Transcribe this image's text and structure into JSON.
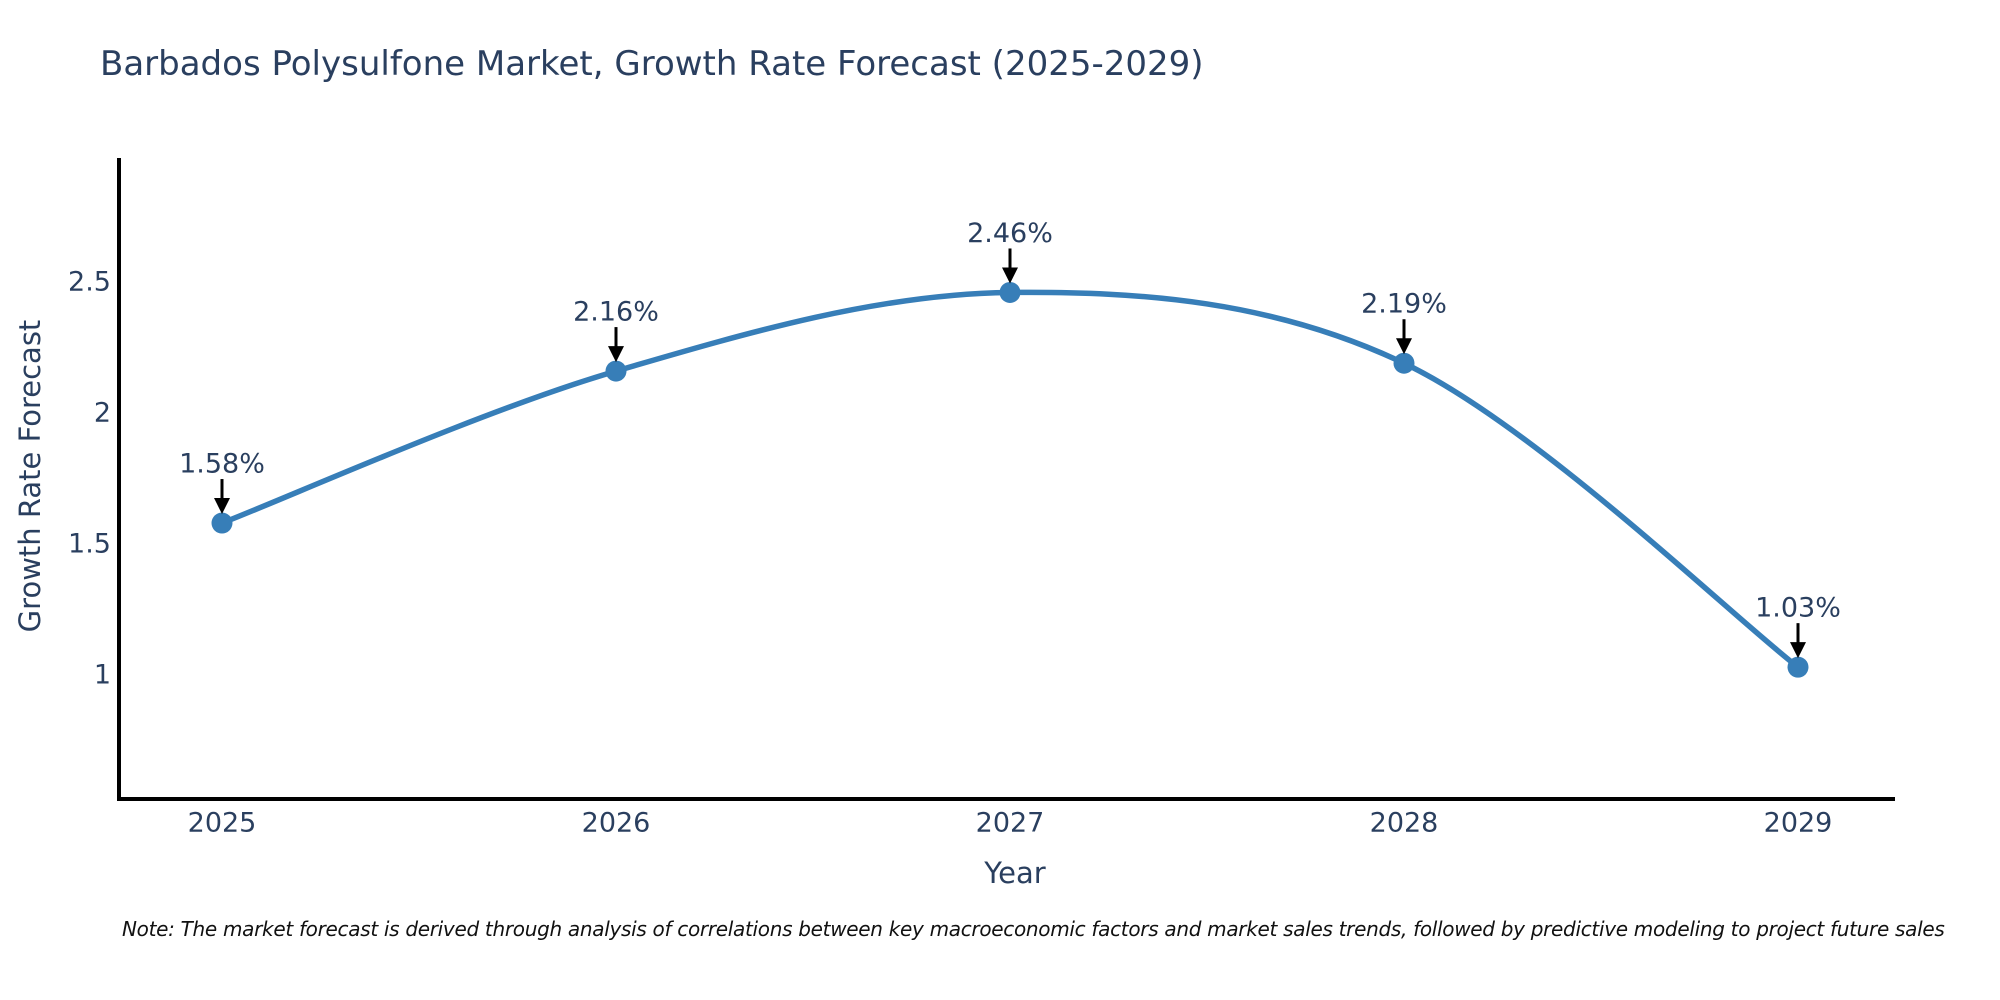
{
  "title": "Barbados Polysulfone Market, Growth Rate Forecast (2025-2029)",
  "note": "Note: The market forecast is derived through analysis of correlations between key macroeconomic factors and market sales trends, followed by predictive modeling to project future sales",
  "chart_data": {
    "type": "line",
    "title": "Barbados Polysulfone Market, Growth Rate Forecast (2025-2029)",
    "xlabel": "Year",
    "ylabel": "Growth Rate Forecast",
    "categories": [
      "2025",
      "2026",
      "2027",
      "2028",
      "2029"
    ],
    "series": [
      {
        "name": "Growth Rate Forecast",
        "values": [
          1.58,
          2.16,
          2.46,
          2.19,
          1.03
        ],
        "point_labels": [
          "1.58%",
          "2.16%",
          "2.46%",
          "2.19%",
          "1.03%"
        ]
      }
    ],
    "yticks": [
      1,
      1.5,
      2,
      2.5
    ],
    "ylim": [
      0.52,
      2.97
    ],
    "line_shape": "spline",
    "markers": true,
    "grid": false,
    "legend_position": "none",
    "annotations_have_arrows": true,
    "colors": {
      "line": "#377eb8",
      "marker": "#377eb8",
      "axis_line": "#000000",
      "chart_text": "#2a3f5f",
      "annotation_arrow": "#000000",
      "note_text": "#111111",
      "background": "#ffffff"
    }
  }
}
